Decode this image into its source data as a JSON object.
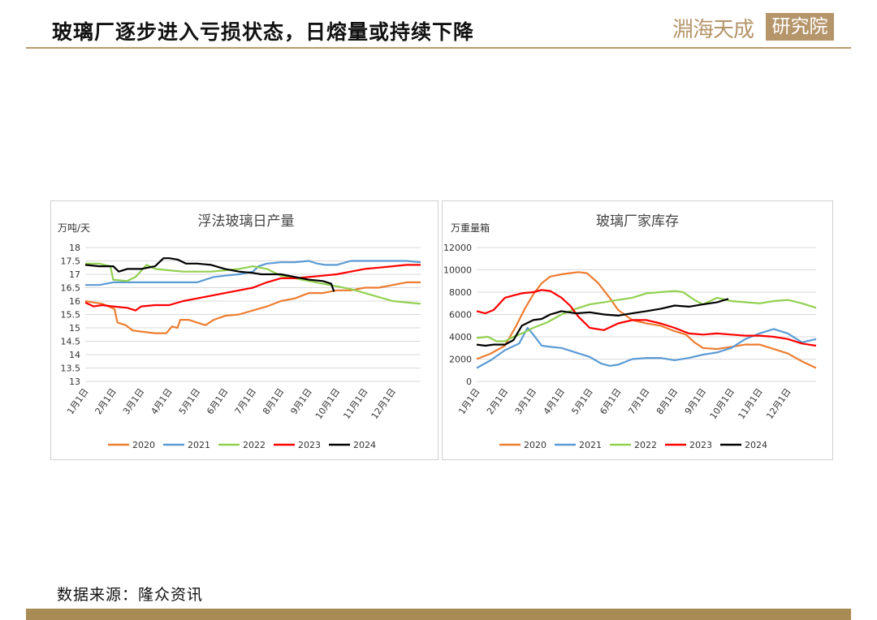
{
  "header": {
    "title": "玻璃厂逐步进入亏损状态，日熔量或持续下降"
  },
  "logo": {
    "brand_text": "淵海天成",
    "box_text": "研究院"
  },
  "source_text": "数据来源：隆众资讯",
  "colors": {
    "accent": "#b89b6e",
    "footer": "#a98b56"
  },
  "chart_data": [
    {
      "type": "line",
      "title": "浮法玻璃日产量",
      "ylabel": "万吨/天",
      "ylim": [
        13,
        18
      ],
      "yticks": [
        "13",
        "13.5",
        "14",
        "14.5",
        "15",
        "15.5",
        "16",
        "16.5",
        "17",
        "17.5",
        "18"
      ],
      "xlim": [
        1,
        13
      ],
      "xticks": [
        "1月1日",
        "2月1日",
        "3月1日",
        "4月1日",
        "5月1日",
        "6月1日",
        "7月1日",
        "8月1日",
        "9月1日",
        "10月1日",
        "11月1日",
        "12月1日"
      ],
      "legend_position": "bottom",
      "series": [
        {
          "name": "2020",
          "color": "#ed7d31",
          "x": [
            1,
            1.6,
            2.05,
            2.15,
            2.45,
            2.7,
            3.1,
            3.5,
            3.9,
            4.1,
            4.3,
            4.4,
            4.7,
            5.0,
            5.3,
            5.6,
            6.0,
            6.5,
            7.0,
            7.5,
            8.0,
            8.5,
            9.0,
            9.5,
            10.0,
            10.5,
            11.0,
            11.5,
            12.0,
            12.5,
            13.0
          ],
          "values": [
            16.0,
            15.9,
            15.7,
            15.2,
            15.1,
            14.9,
            14.85,
            14.8,
            14.8,
            15.05,
            15.0,
            15.3,
            15.3,
            15.2,
            15.1,
            15.3,
            15.45,
            15.5,
            15.65,
            15.8,
            16.0,
            16.1,
            16.3,
            16.3,
            16.4,
            16.4,
            16.5,
            16.5,
            16.6,
            16.7,
            16.7
          ]
        },
        {
          "name": "2021",
          "color": "#5b9bd5",
          "x": [
            1,
            1.5,
            2.0,
            2.5,
            3.0,
            3.5,
            4.0,
            4.5,
            5.0,
            5.3,
            5.6,
            6.0,
            6.5,
            7.0,
            7.2,
            7.5,
            8.0,
            8.5,
            9.0,
            9.3,
            9.6,
            10.0,
            10.5,
            11.0,
            11.5,
            12.0,
            12.5,
            13.0
          ],
          "values": [
            16.6,
            16.6,
            16.7,
            16.7,
            16.7,
            16.7,
            16.7,
            16.7,
            16.7,
            16.8,
            16.9,
            16.95,
            17.0,
            17.1,
            17.3,
            17.4,
            17.45,
            17.45,
            17.5,
            17.4,
            17.35,
            17.35,
            17.5,
            17.5,
            17.5,
            17.5,
            17.5,
            17.45
          ]
        },
        {
          "name": "2022",
          "color": "#92d050",
          "x": [
            1,
            1.5,
            1.9,
            2.0,
            2.5,
            2.8,
            3.2,
            3.5,
            4.0,
            4.5,
            5.0,
            5.5,
            6.0,
            6.5,
            7.0,
            7.5,
            8.0,
            8.5,
            9.0,
            9.5,
            10.0,
            10.5,
            11.0,
            11.5,
            12.0,
            12.5,
            13.0
          ],
          "values": [
            17.4,
            17.4,
            17.3,
            16.8,
            16.75,
            16.9,
            17.35,
            17.2,
            17.15,
            17.1,
            17.1,
            17.1,
            17.15,
            17.2,
            17.3,
            17.2,
            16.95,
            16.85,
            16.75,
            16.65,
            16.55,
            16.45,
            16.3,
            16.15,
            16.0,
            15.95,
            15.9
          ]
        },
        {
          "name": "2023",
          "color": "#ff0000",
          "x": [
            1,
            1.3,
            1.6,
            2.0,
            2.5,
            2.8,
            3.0,
            3.5,
            4.0,
            4.5,
            5.0,
            5.5,
            6.0,
            6.5,
            7.0,
            7.5,
            8.0,
            8.5,
            9.0,
            9.5,
            10.0,
            10.5,
            11.0,
            11.5,
            12.0,
            12.5,
            13.0
          ],
          "values": [
            15.95,
            15.8,
            15.85,
            15.8,
            15.75,
            15.65,
            15.8,
            15.85,
            15.85,
            16.0,
            16.1,
            16.2,
            16.3,
            16.4,
            16.5,
            16.7,
            16.85,
            16.85,
            16.9,
            16.95,
            17.0,
            17.1,
            17.2,
            17.25,
            17.3,
            17.35,
            17.35
          ]
        },
        {
          "name": "2024",
          "color": "#000000",
          "x": [
            1,
            1.5,
            2.0,
            2.2,
            2.5,
            3.0,
            3.5,
            3.8,
            4.0,
            4.3,
            4.6,
            5.0,
            5.5,
            6.0,
            6.5,
            7.0,
            7.3,
            7.6,
            8.0,
            8.5,
            9.0,
            9.5,
            9.8,
            9.9
          ],
          "values": [
            17.35,
            17.3,
            17.3,
            17.1,
            17.2,
            17.2,
            17.3,
            17.6,
            17.6,
            17.55,
            17.4,
            17.4,
            17.35,
            17.2,
            17.1,
            17.05,
            17.0,
            17.0,
            17.0,
            16.9,
            16.8,
            16.75,
            16.65,
            16.35
          ]
        }
      ]
    },
    {
      "type": "line",
      "title": "玻璃厂家库存",
      "ylabel": "万重量箱",
      "ylim": [
        0,
        12000
      ],
      "yticks": [
        "0",
        "2000",
        "4000",
        "6000",
        "8000",
        "10000",
        "12000"
      ],
      "xlim": [
        1,
        13
      ],
      "xticks": [
        "1月1日",
        "2月1日",
        "3月1日",
        "4月1日",
        "5月1日",
        "6月1日",
        "7月1日",
        "8月1日",
        "9月1日",
        "10月1日",
        "11月1日",
        "12月1日"
      ],
      "legend_position": "bottom",
      "series": [
        {
          "name": "2020",
          "color": "#ed7d31",
          "x": [
            1,
            1.5,
            2.0,
            2.4,
            2.7,
            3.0,
            3.3,
            3.6,
            4.0,
            4.3,
            4.6,
            4.9,
            5.3,
            5.7,
            6.0,
            6.5,
            7.0,
            7.5,
            8.0,
            8.4,
            8.7,
            9.0,
            9.5,
            10.0,
            10.5,
            11.0,
            11.5,
            12.0,
            12.5,
            13.0
          ],
          "values": [
            2000,
            2500,
            3200,
            5000,
            6500,
            7800,
            8800,
            9400,
            9600,
            9700,
            9800,
            9700,
            8800,
            7500,
            6400,
            5500,
            5200,
            5000,
            4500,
            4200,
            3500,
            3000,
            2900,
            3100,
            3300,
            3300,
            2900,
            2500,
            1800,
            1200
          ]
        },
        {
          "name": "2021",
          "color": "#5b9bd5",
          "x": [
            1,
            1.5,
            2.0,
            2.5,
            2.8,
            3.0,
            3.3,
            3.6,
            4.0,
            4.5,
            5.0,
            5.4,
            5.7,
            6.0,
            6.5,
            7.0,
            7.5,
            8.0,
            8.5,
            9.0,
            9.5,
            10.0,
            10.5,
            11.0,
            11.5,
            12.0,
            12.5,
            13.0
          ],
          "values": [
            1200,
            1900,
            2800,
            3400,
            4800,
            4200,
            3200,
            3100,
            3000,
            2600,
            2200,
            1600,
            1400,
            1500,
            2000,
            2100,
            2100,
            1900,
            2100,
            2400,
            2600,
            3000,
            3800,
            4300,
            4700,
            4300,
            3500,
            3800
          ]
        },
        {
          "name": "2022",
          "color": "#92d050",
          "x": [
            1,
            1.4,
            1.7,
            2.0,
            2.3,
            2.6,
            3.0,
            3.5,
            4.0,
            4.5,
            5.0,
            5.5,
            6.0,
            6.5,
            7.0,
            7.5,
            8.0,
            8.3,
            8.7,
            9.0,
            9.5,
            10.0,
            10.5,
            11.0,
            11.5,
            12.0,
            12.5,
            13.0
          ],
          "values": [
            3900,
            4000,
            3600,
            3600,
            4000,
            4300,
            4800,
            5300,
            6000,
            6500,
            6900,
            7100,
            7300,
            7500,
            7900,
            8000,
            8100,
            8000,
            7300,
            6900,
            7500,
            7200,
            7100,
            7000,
            7200,
            7300,
            7000,
            6600
          ]
        },
        {
          "name": "2023",
          "color": "#ff0000",
          "x": [
            1,
            1.3,
            1.6,
            2.0,
            2.3,
            2.6,
            3.0,
            3.3,
            3.6,
            4.0,
            4.3,
            4.6,
            5.0,
            5.5,
            6.0,
            6.5,
            7.0,
            7.5,
            8.0,
            8.5,
            9.0,
            9.5,
            10.0,
            10.5,
            11.0,
            11.5,
            12.0,
            12.5,
            13.0
          ],
          "values": [
            6300,
            6100,
            6400,
            7500,
            7700,
            7900,
            8000,
            8200,
            8100,
            7500,
            6800,
            5800,
            4800,
            4600,
            5200,
            5500,
            5500,
            5200,
            4800,
            4300,
            4200,
            4300,
            4200,
            4100,
            4100,
            4000,
            3800,
            3400,
            3200
          ]
        },
        {
          "name": "2024",
          "color": "#000000",
          "x": [
            1,
            1.3,
            1.6,
            2.0,
            2.3,
            2.6,
            3.0,
            3.3,
            3.6,
            4.0,
            4.5,
            5.0,
            5.5,
            6.0,
            6.5,
            7.0,
            7.5,
            8.0,
            8.5,
            9.0,
            9.5,
            9.9
          ],
          "values": [
            3300,
            3200,
            3300,
            3300,
            3700,
            5000,
            5500,
            5600,
            6000,
            6300,
            6100,
            6200,
            6000,
            5900,
            6100,
            6300,
            6500,
            6800,
            6700,
            6900,
            7100,
            7400
          ]
        }
      ]
    }
  ]
}
